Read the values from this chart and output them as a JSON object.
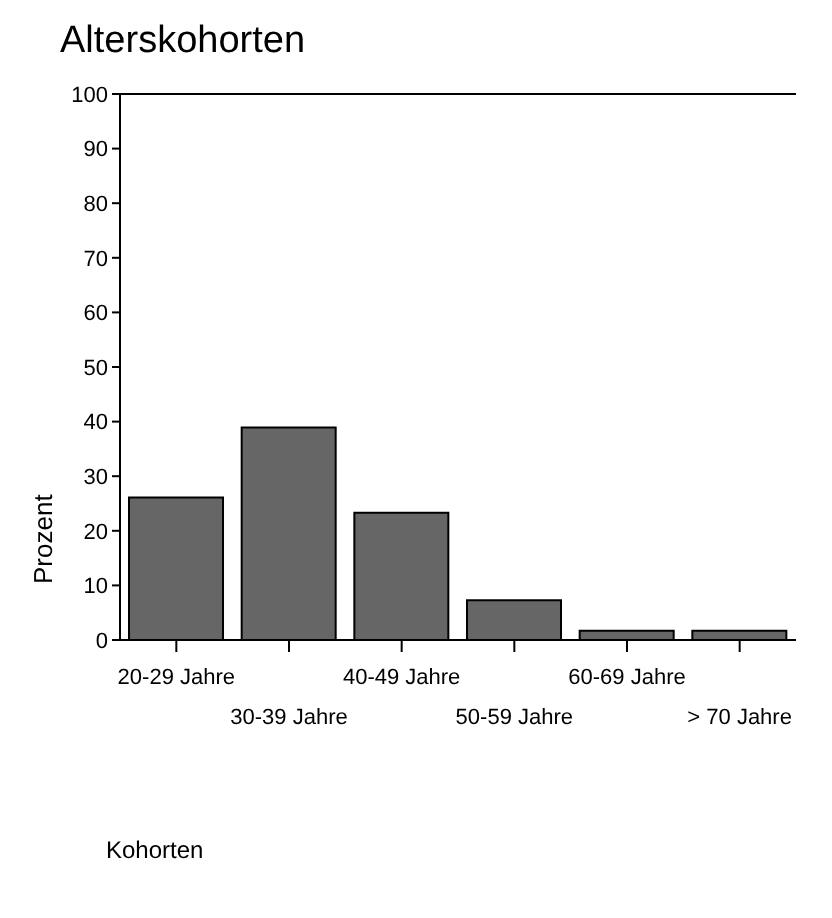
{
  "chart_data": {
    "type": "bar",
    "title": "Alterskohorten",
    "xlabel": "Kohorten",
    "ylabel": "Prozent",
    "categories": [
      "20-29 Jahre",
      "30-39 Jahre",
      "40-49 Jahre",
      "50-59 Jahre",
      "60-69 Jahre",
      "> 70 Jahre"
    ],
    "values": [
      26.1,
      38.9,
      23.3,
      7.3,
      1.7,
      1.7
    ],
    "color": "#666666",
    "ylim": [
      0,
      100
    ],
    "yticks": [
      0,
      10,
      20,
      30,
      40,
      50,
      60,
      70,
      80,
      90,
      100
    ],
    "grid": false
  }
}
